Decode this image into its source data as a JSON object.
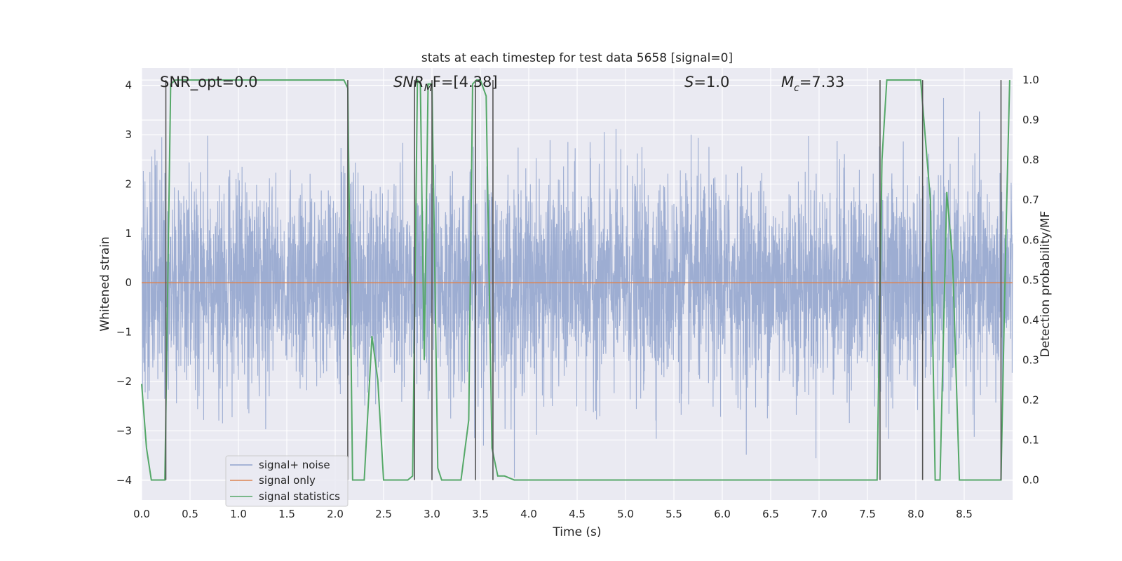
{
  "chart_data": {
    "type": "line",
    "title": "stats at each timestep for test data 5658 [signal=0]",
    "xlabel": "Time (s)",
    "ylabel_left": "Whitened strain",
    "ylabel_right": "Detection probability/MF",
    "xlim": [
      0.0,
      9.0
    ],
    "ylim_left": [
      -4.4,
      4.35
    ],
    "ylim_right": [
      -0.05,
      1.03
    ],
    "x_ticks": [
      "0.0",
      "0.5",
      "1.0",
      "1.5",
      "2.0",
      "2.5",
      "3.0",
      "3.5",
      "4.0",
      "4.5",
      "5.0",
      "5.5",
      "6.0",
      "6.5",
      "7.0",
      "7.5",
      "8.0",
      "8.5"
    ],
    "y_left_ticks": [
      "4",
      "3",
      "2",
      "1",
      "0",
      "−1",
      "−2",
      "−3",
      "−4"
    ],
    "y_right_ticks": [
      "1.0",
      "0.9",
      "0.8",
      "0.7",
      "0.6",
      "0.5",
      "0.4",
      "0.3",
      "0.2",
      "0.1",
      "0.0"
    ],
    "annotations": [
      {
        "id": "snr_opt",
        "text": "SNR_opt=0.0"
      },
      {
        "id": "snr_mf",
        "text": "SNR_MF=[4.38]",
        "base": "SNR",
        "sub": "M",
        "rest": "F=[4.38]"
      },
      {
        "id": "s",
        "text": "S=1.0",
        "base": "S",
        "rest": "=1.0"
      },
      {
        "id": "mc",
        "text": "M_c=7.33",
        "base": "M",
        "sub": "c",
        "rest": "=7.33"
      }
    ],
    "legend": {
      "placement": "lower-left",
      "entries": [
        "signal+ noise",
        "signal only",
        "signal statistics"
      ]
    },
    "series": [
      {
        "name": "signal+ noise",
        "color": "#8fa2cc",
        "kind": "noise",
        "amplitude_std": 1.0,
        "y_min": -4.0,
        "y_max": 4.0
      },
      {
        "name": "signal only",
        "color": "#dd8452",
        "x": [
          0.0,
          9.0
        ],
        "y": [
          0.0,
          0.0
        ]
      },
      {
        "name": "signal statistics",
        "color": "#55a868",
        "x": [
          0.0,
          0.05,
          0.1,
          0.17,
          0.24,
          0.3,
          0.35,
          1.0,
          2.09,
          2.13,
          2.18,
          2.22,
          2.3,
          2.38,
          2.44,
          2.5,
          2.6,
          2.75,
          2.8,
          2.85,
          2.88,
          2.92,
          2.96,
          3.0,
          3.06,
          3.1,
          3.15,
          3.2,
          3.3,
          3.38,
          3.42,
          3.46,
          3.5,
          3.56,
          3.62,
          3.68,
          3.75,
          3.85,
          3.95,
          4.05,
          4.2,
          4.45,
          5.0,
          5.6,
          6.0,
          6.5,
          7.0,
          7.6,
          7.65,
          7.7,
          8.05,
          8.15,
          8.2,
          8.25,
          8.32,
          8.38,
          8.45,
          8.55,
          8.88,
          8.93,
          8.97
        ],
        "y": [
          0.24,
          0.08,
          0.0,
          0.0,
          0.0,
          0.99,
          1.0,
          1.0,
          1.0,
          0.98,
          0.0,
          0.0,
          0.0,
          0.36,
          0.25,
          0.0,
          0.0,
          0.0,
          0.01,
          1.0,
          0.99,
          0.3,
          0.99,
          0.99,
          0.03,
          0.0,
          0.0,
          0.0,
          0.0,
          0.15,
          0.99,
          1.0,
          1.0,
          0.96,
          0.08,
          0.01,
          0.01,
          0.0,
          0.0,
          0.0,
          0.0,
          0.0,
          0.0,
          0.0,
          0.0,
          0.0,
          0.0,
          0.0,
          0.8,
          1.0,
          1.0,
          0.7,
          0.0,
          0.0,
          0.72,
          0.55,
          0.0,
          0.0,
          0.0,
          0.6,
          1.0
        ]
      }
    ],
    "vlines": {
      "color": "#555555",
      "x": [
        0.25,
        2.13,
        2.82,
        3.0,
        3.45,
        3.63,
        7.63,
        8.07,
        8.88
      ]
    }
  }
}
